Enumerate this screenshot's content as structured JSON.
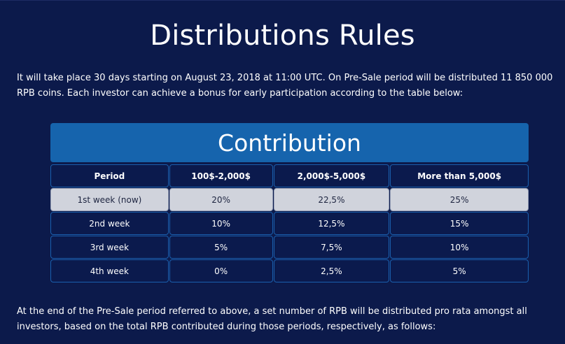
{
  "title": "Distributions Rules",
  "intro": "It will take place 30 days starting on August 23, 2018 at 11:00 UTC. On Pre-Sale period will be distributed 11 850 000 RPB coins. Each investor can achieve a bonus for early participation according to the table below:",
  "table": {
    "caption": "Contribution",
    "headers": [
      "Period",
      "100$-2,000$",
      "2,000$-5,000$",
      "More than 5,000$"
    ],
    "rows": [
      [
        "1st week (now)",
        "20%",
        "22,5%",
        "25%"
      ],
      [
        "2nd week",
        "10%",
        "12,5%",
        "15%"
      ],
      [
        "3rd week",
        "5%",
        "7,5%",
        "10%"
      ],
      [
        "4th week",
        "0%",
        "2,5%",
        "5%"
      ]
    ]
  },
  "outro": "At the end of the Pre-Sale period referred to above, a set number of RPB will be distributed pro rata amongst all investors, based on the total RPB contributed during those periods, respectively, as follows:",
  "colors": {
    "background": "#0c1a4b",
    "caption_bar": "#1664ad",
    "cell_border": "#1a5fae",
    "highlight_row": "#d0d3dc"
  }
}
